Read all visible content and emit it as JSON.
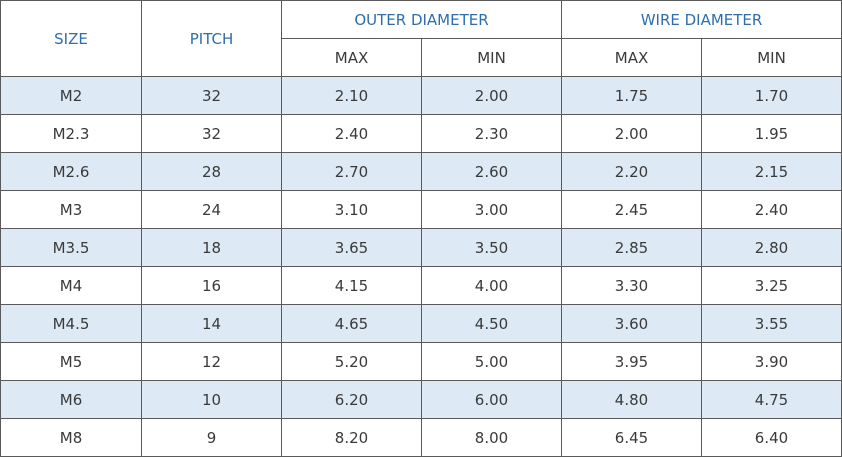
{
  "table": {
    "header": {
      "size": "SIZE",
      "pitch": "PITCH",
      "outer": "OUTER DIAMETER",
      "wire": "WIRE DIAMETER",
      "sub": [
        "MAX",
        "MIN",
        "MAX",
        "MIN"
      ]
    },
    "rows": [
      [
        "M2",
        "32",
        "2.10",
        "2.00",
        "1.75",
        "1.70"
      ],
      [
        "M2.3",
        "32",
        "2.40",
        "2.30",
        "2.00",
        "1.95"
      ],
      [
        "M2.6",
        "28",
        "2.70",
        "2.60",
        "2.20",
        "2.15"
      ],
      [
        "M3",
        "24",
        "3.10",
        "3.00",
        "2.45",
        "2.40"
      ],
      [
        "M3.5",
        "18",
        "3.65",
        "3.50",
        "2.85",
        "2.80"
      ],
      [
        "M4",
        "16",
        "4.15",
        "4.00",
        "3.30",
        "3.25"
      ],
      [
        "M4.5",
        "14",
        "4.65",
        "4.50",
        "3.60",
        "3.55"
      ],
      [
        "M5",
        "12",
        "5.20",
        "5.00",
        "3.95",
        "3.90"
      ],
      [
        "M6",
        "10",
        "6.20",
        "6.00",
        "4.80",
        "4.75"
      ],
      [
        "M8",
        "9",
        "8.20",
        "8.00",
        "6.45",
        "6.40"
      ]
    ]
  }
}
